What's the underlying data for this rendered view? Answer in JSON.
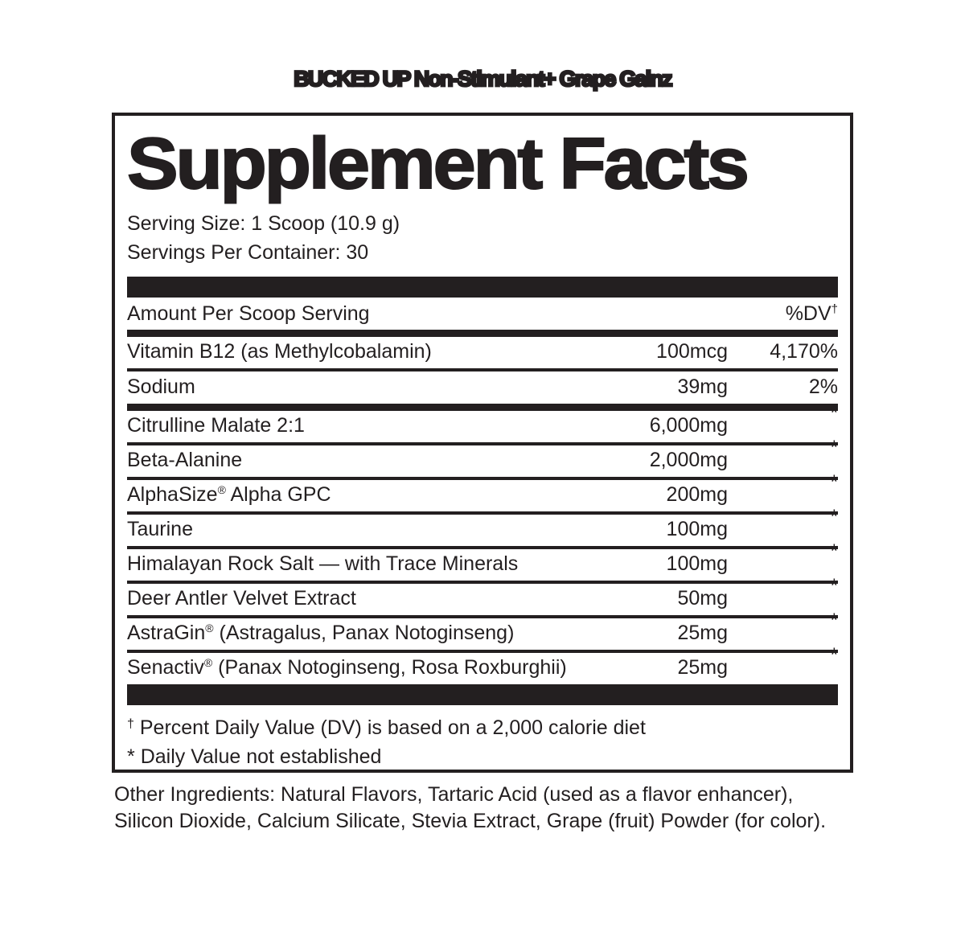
{
  "page": {
    "background": "#ffffff",
    "ink_color": "#231f20"
  },
  "header": {
    "product_title": "BUCKED UP Non-Stimulant+ Grape Gainz"
  },
  "panel": {
    "title": "Supplement Facts",
    "serving_size": "Serving Size: 1 Scoop (10.9 g)",
    "servings_per_container": "Servings Per Container: 30",
    "columns": {
      "amount_header": "Amount Per Scoop Serving",
      "dv_header": "%DV",
      "dv_header_sup": "†"
    },
    "rows": [
      {
        "pre": "Vitamin B12 (as Methylcobalamin)",
        "reg": "",
        "post": "",
        "amount": "100mcg",
        "dv": "4,170%"
      },
      {
        "pre": "Sodium",
        "reg": "",
        "post": "",
        "amount": "39mg",
        "dv": "2%"
      },
      {
        "pre": "Citrulline Malate 2:1",
        "reg": "",
        "post": "",
        "amount": "6,000mg",
        "dv": "*"
      },
      {
        "pre": "Beta-Alanine",
        "reg": "",
        "post": "",
        "amount": "2,000mg",
        "dv": "*"
      },
      {
        "pre": "AlphaSize",
        "reg": "®",
        "post": " Alpha GPC",
        "amount": "200mg",
        "dv": "*"
      },
      {
        "pre": "Taurine",
        "reg": "",
        "post": "",
        "amount": "100mg",
        "dv": "*"
      },
      {
        "pre": "Himalayan Rock Salt — with Trace Minerals",
        "reg": "",
        "post": "",
        "amount": "100mg",
        "dv": "*"
      },
      {
        "pre": "Deer Antler Velvet Extract",
        "reg": "",
        "post": "",
        "amount": "50mg",
        "dv": "*"
      },
      {
        "pre": "AstraGin",
        "reg": "®",
        "post": " (Astragalus, Panax Notoginseng)",
        "amount": "25mg",
        "dv": "*"
      },
      {
        "pre": "Senactiv",
        "reg": "®",
        "post": " (Panax Notoginseng, Rosa Roxburghii)",
        "amount": "25mg",
        "dv": "*"
      }
    ],
    "footnotes": [
      {
        "sup": "†",
        "text": "Percent Daily Value (DV) is based on a 2,000 calorie diet"
      },
      {
        "sup": "*",
        "text": "Daily Value not established"
      }
    ]
  },
  "other_ingredients": {
    "line1": "Other Ingredients: Natural Flavors, Tartaric Acid (used as a flavor enhancer),",
    "line2": "Silicon Dioxide, Calcium Silicate, Stevia Extract, Grape (fruit) Powder (for color)."
  }
}
